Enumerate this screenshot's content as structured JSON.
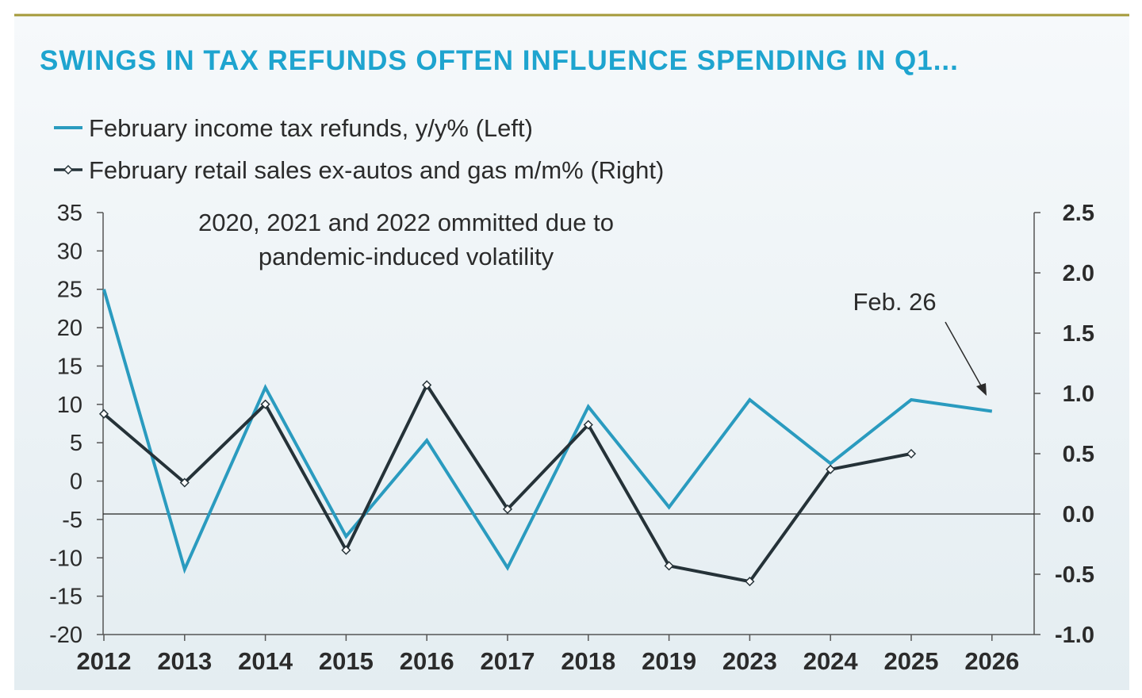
{
  "chart_data": {
    "type": "line",
    "title": "SWINGS IN TAX REFUNDS OFTEN INFLUENCE SPENDING IN Q1...",
    "annotation_note": "2020, 2021 and 2022 ommitted due to pandemic-induced volatility",
    "annotation_note_lines": [
      "2020, 2021 and 2022 ommitted due to",
      "pandemic-induced volatility"
    ],
    "annotation_arrow": "Feb. 26",
    "categories": [
      "2012",
      "2013",
      "2014",
      "2015",
      "2016",
      "2017",
      "2018",
      "2019",
      "2023",
      "2024",
      "2025",
      "2026"
    ],
    "left_axis": {
      "ylim": [
        -20,
        35
      ],
      "ticks": [
        "35",
        "30",
        "25",
        "20",
        "15",
        "10",
        "5",
        "0",
        "-5",
        "-10",
        "-15",
        "-20"
      ]
    },
    "right_axis": {
      "ylim": [
        -1.0,
        2.5
      ],
      "ticks": [
        "2.5",
        "2.0",
        "1.5",
        "1.0",
        "0.5",
        "0.0",
        "-0.5",
        "-1.0"
      ]
    },
    "series": [
      {
        "name": "February income tax refunds, y/y% (Left)",
        "axis": "left",
        "color": "#2a9bbf",
        "marker": "none",
        "values": [
          25.0,
          -11.5,
          12.2,
          -7.2,
          5.3,
          -11.3,
          9.7,
          -3.4,
          10.6,
          2.3,
          10.6,
          9.1
        ]
      },
      {
        "name": "February retail sales ex-autos and gas m/m% (Right)",
        "axis": "right",
        "color": "#253238",
        "marker": "diamond",
        "values": [
          0.83,
          0.26,
          0.91,
          -0.3,
          1.07,
          0.04,
          0.74,
          -0.43,
          -0.56,
          0.37,
          0.5,
          null
        ]
      }
    ],
    "zero_line_axis": "right",
    "colors": {
      "title": "#1ea4cf",
      "top_rule": "#a49a3a",
      "text": "#2b2b2b",
      "axis": "#555555",
      "background_top": "#f6f9fb",
      "background_bottom": "#e4edf1"
    }
  }
}
